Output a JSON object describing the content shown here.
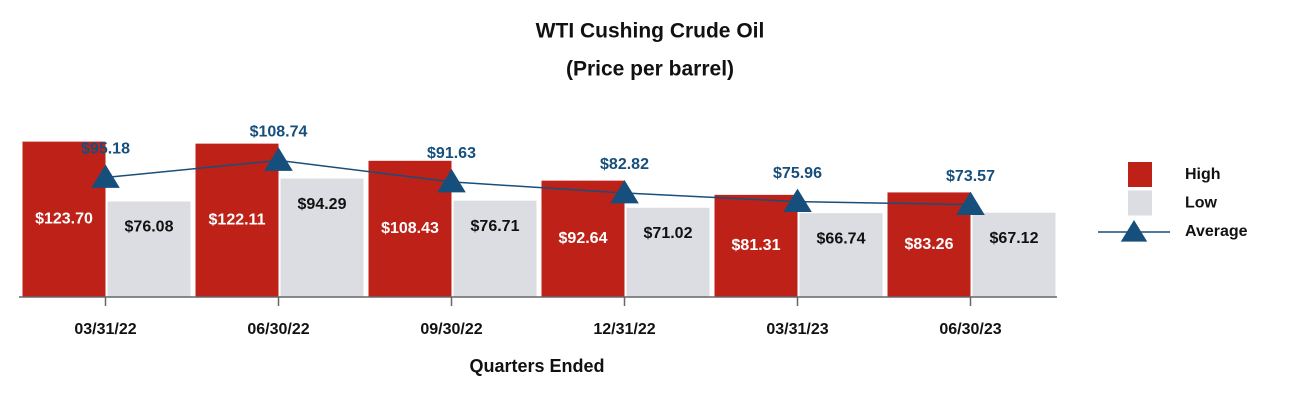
{
  "chart_data": {
    "type": "bar",
    "title": "WTI Cushing Crude Oil",
    "subtitle": "(Price per barrel)",
    "x_label": "Quarters Ended",
    "categories": [
      "03/31/22",
      "06/30/22",
      "09/30/22",
      "12/31/22",
      "03/31/23",
      "06/30/23"
    ],
    "series": [
      {
        "name": "High",
        "color": "#be2117",
        "values": [
          123.7,
          122.11,
          108.43,
          92.64,
          81.31,
          83.26
        ],
        "value_labels": [
          "$123.70",
          "$122.11",
          "$108.43",
          "$92.64",
          "$81.31",
          "$83.26"
        ]
      },
      {
        "name": "Low",
        "color": "#dcdde3",
        "values": [
          76.08,
          94.29,
          76.71,
          71.02,
          66.74,
          67.12
        ],
        "value_labels": [
          "$76.08",
          "$94.29",
          "$76.71",
          "$71.02",
          "$66.74",
          "$67.12"
        ]
      },
      {
        "name": "Average",
        "type": "line",
        "color": "#174f7c",
        "values": [
          95.18,
          108.74,
          91.63,
          82.82,
          75.96,
          73.57
        ],
        "value_labels": [
          "$95.18",
          "$108.74",
          "$91.63",
          "$82.82",
          "$75.96",
          "$73.57"
        ]
      }
    ],
    "ylim": [
      0,
      125
    ],
    "legend": "right"
  }
}
